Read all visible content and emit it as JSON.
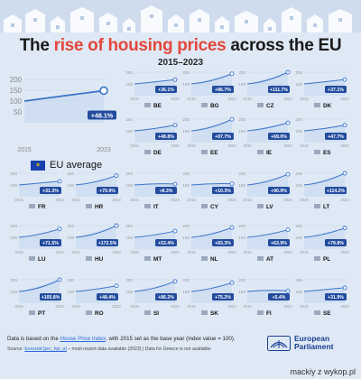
{
  "header": {
    "title_pre": "The ",
    "title_highlight": "rise of housing prices",
    "title_post": " across the EU",
    "subtitle": "2015–2023"
  },
  "colors": {
    "line": "#3a73c8",
    "badge": "#234c9e",
    "accent": "#e2473b",
    "background": "#dfe9f5"
  },
  "chart_data": {
    "type": "line",
    "ylim": [
      0,
      200
    ],
    "yticks": [
      50,
      100,
      150,
      200
    ],
    "x": [
      2015,
      2023
    ],
    "eu_average": {
      "name": "EU average",
      "values": [
        100,
        148.1
      ],
      "label": "+48.1%"
    },
    "countries": [
      {
        "code": "BE",
        "label": "+36.1%",
        "end": 136.1
      },
      {
        "code": "BG",
        "label": "+86.7%",
        "end": 186.7
      },
      {
        "code": "CZ",
        "label": "+111.7%",
        "end": 211.7
      },
      {
        "code": "DK",
        "label": "+37.1%",
        "end": 137.1
      },
      {
        "code": "DE",
        "label": "+48.8%",
        "end": 148.8
      },
      {
        "code": "EE",
        "label": "+97.7%",
        "end": 197.7
      },
      {
        "code": "IE",
        "label": "+69.0%",
        "end": 169.0
      },
      {
        "code": "ES",
        "label": "+47.7%",
        "end": 147.7
      },
      {
        "code": "FR",
        "label": "+31.3%",
        "end": 131.3
      },
      {
        "code": "HR",
        "label": "+79.9%",
        "end": 179.9
      },
      {
        "code": "IT",
        "label": "+8.3%",
        "end": 108.3
      },
      {
        "code": "CY",
        "label": "+10.3%",
        "end": 110.3
      },
      {
        "code": "LV",
        "label": "+90.9%",
        "end": 190.9
      },
      {
        "code": "LT",
        "label": "+114.2%",
        "end": 214.2
      },
      {
        "code": "LU",
        "label": "+71.5%",
        "end": 171.5
      },
      {
        "code": "HU",
        "label": "+172.5%",
        "end": 272.5
      },
      {
        "code": "MT",
        "label": "+53.4%",
        "end": 153.4
      },
      {
        "code": "NL",
        "label": "+83.3%",
        "end": 183.3
      },
      {
        "code": "AT",
        "label": "+63.9%",
        "end": 163.9
      },
      {
        "code": "PL",
        "label": "+79.8%",
        "end": 179.8
      },
      {
        "code": "PT",
        "label": "+105.8%",
        "end": 205.8
      },
      {
        "code": "RO",
        "label": "+48.4%",
        "end": 148.4
      },
      {
        "code": "SI",
        "label": "+86.2%",
        "end": 186.2
      },
      {
        "code": "SK",
        "label": "+75.2%",
        "end": 175.2
      },
      {
        "code": "FI",
        "label": "+5.4%",
        "end": 105.4
      },
      {
        "code": "SE",
        "label": "+31.9%",
        "end": 131.9
      }
    ]
  },
  "footer": {
    "note_pre": "Data is based on the ",
    "note_link": "House Price Index",
    "note_post": ", with 2015 set as the base year (index value = 100).",
    "source_pre": "Source: ",
    "source_link": "Eurostat [prc_hpi_a]",
    "source_post": " – most recent data available (2023)  |  Data for Greece is not available.",
    "brand_line1": "European",
    "brand_line2": "Parliament",
    "credit": "mackiy z wykop.pl"
  }
}
